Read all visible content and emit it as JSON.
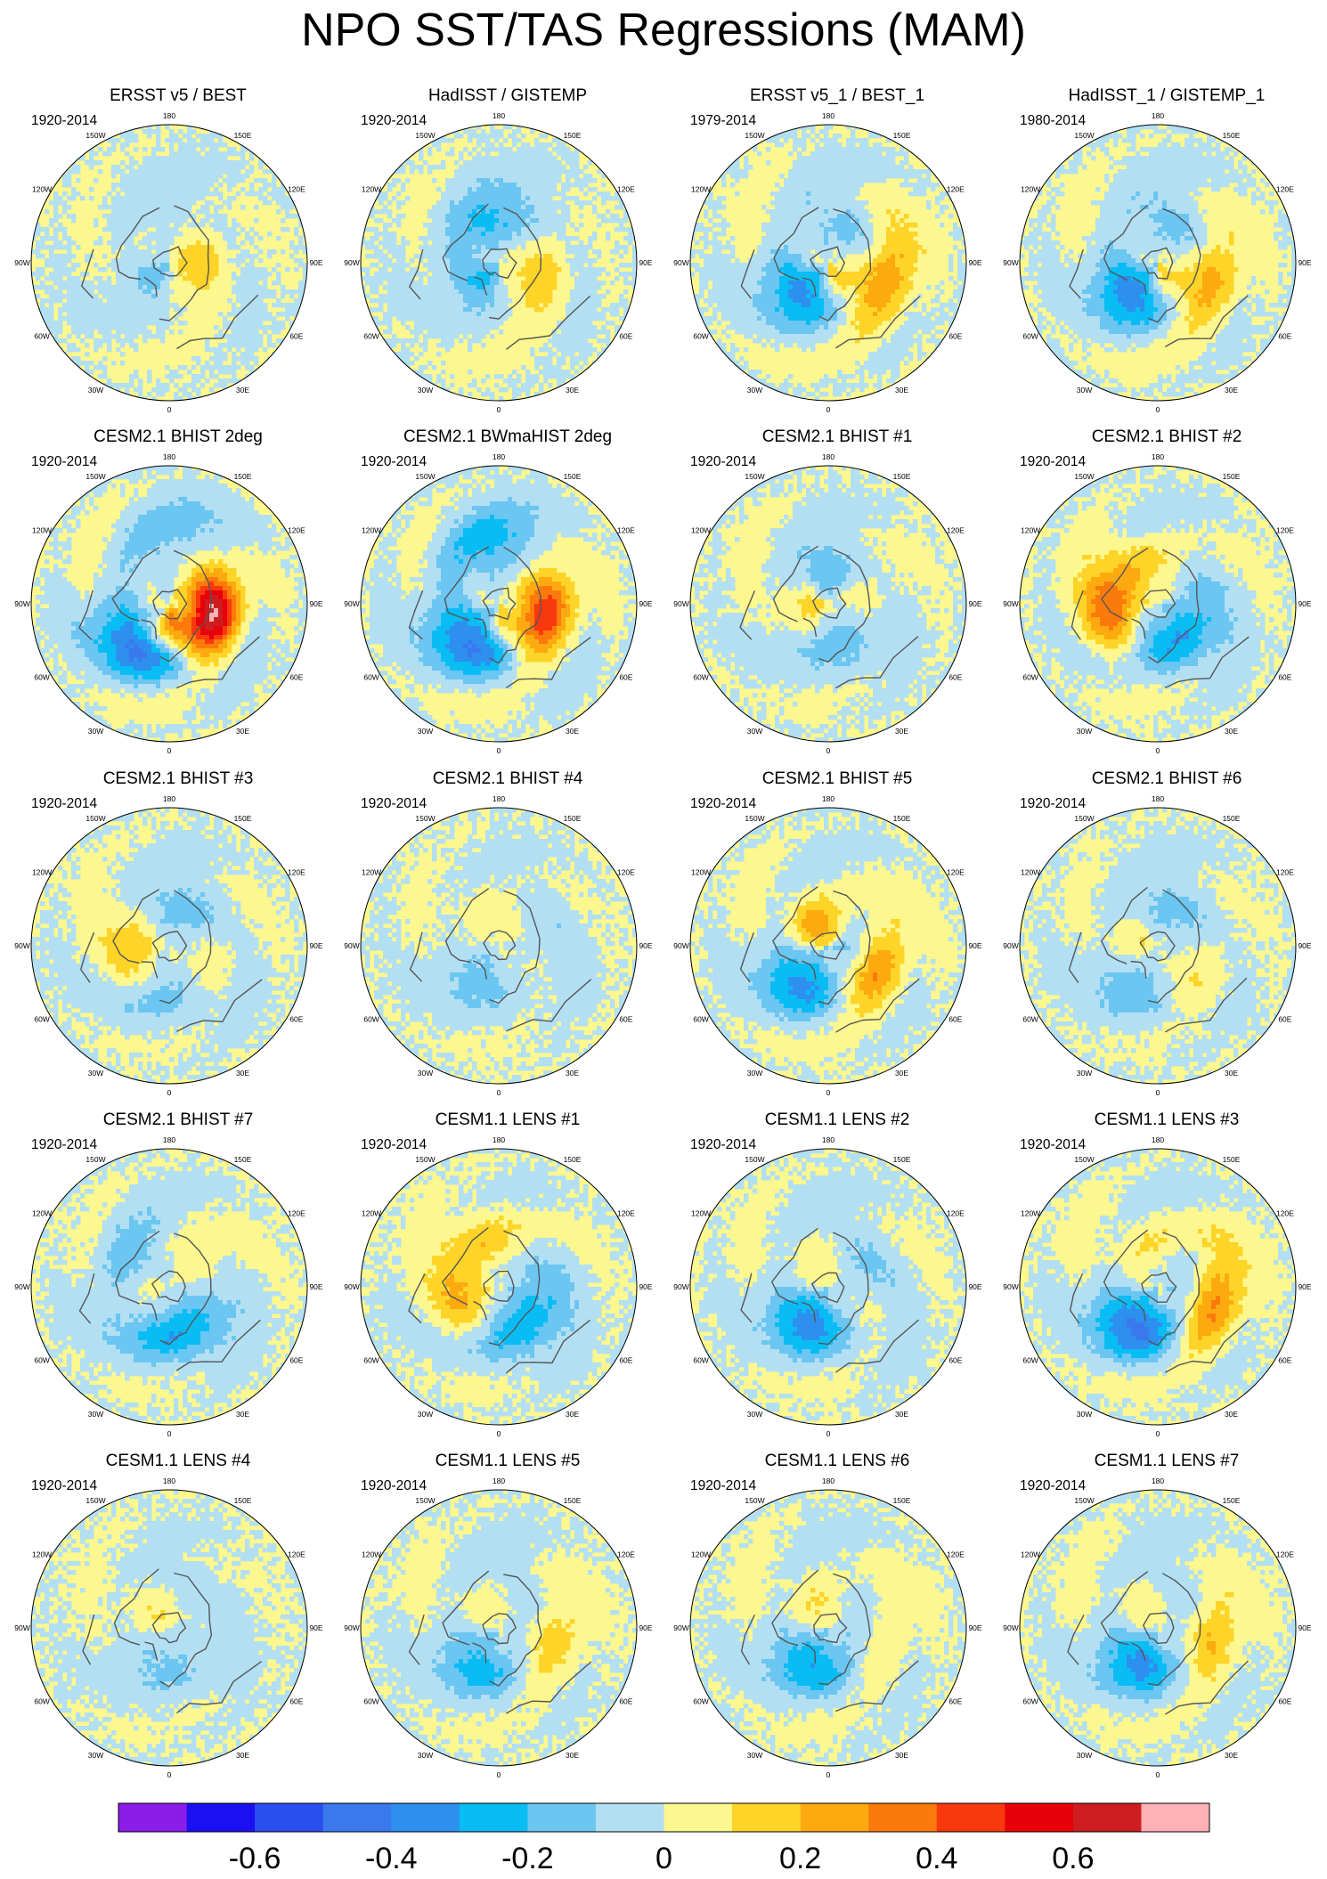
{
  "title": "NPO SST/TAS Regressions (MAM)",
  "panels": [
    {
      "title": "ERSST v5 / BEST",
      "period": "1920-2014",
      "pattern": {
        "amp": 0.25,
        "pos": [
          [
            92,
            0.22,
            0.3
          ],
          [
            35,
            0.12,
            0.18
          ]
        ],
        "neg": [
          [
            -35,
            0.1,
            0.35
          ],
          [
            165,
            0.42,
            0.1
          ]
        ],
        "land": 0.25
      }
    },
    {
      "title": "HadISST / GISTEMP",
      "period": "1920-2014",
      "pattern": {
        "amp": 0.32,
        "pos": [
          [
            82,
            0.36,
            0.35
          ],
          [
            35,
            0.15,
            0.15
          ]
        ],
        "neg": [
          [
            -35,
            0.17,
            0.35
          ],
          [
            200,
            0.32,
            0.3
          ],
          [
            120,
            0.42,
            0.18
          ]
        ],
        "land": 0.3
      }
    },
    {
      "title": "ERSST v5_1 / BEST_1",
      "period": "1979-2014",
      "pattern": {
        "amp": 0.45,
        "pos": [
          [
            82,
            0.44,
            0.45
          ],
          [
            40,
            0.12,
            0.2
          ]
        ],
        "neg": [
          [
            -38,
            0.3,
            0.38
          ],
          [
            125,
            0.35,
            0.26
          ]
        ],
        "land": 0.2
      }
    },
    {
      "title": "HadISST_1 / GISTEMP_1",
      "period": "1980-2014",
      "pattern": {
        "amp": 0.45,
        "pos": [
          [
            80,
            0.42,
            0.38
          ],
          [
            40,
            0.12,
            0.18
          ]
        ],
        "neg": [
          [
            -38,
            0.3,
            0.4
          ],
          [
            130,
            0.35,
            0.25
          ]
        ],
        "land": 0.2
      }
    },
    {
      "title": "CESM2.1 BHIST 2deg",
      "period": "1920-2014",
      "pattern": {
        "amp": 0.62,
        "pos": [
          [
            80,
            0.34,
            0.6
          ],
          [
            -5,
            0.18,
            0.3
          ]
        ],
        "neg": [
          [
            -30,
            0.36,
            0.4
          ],
          [
            150,
            0.5,
            0.14
          ]
        ],
        "land": 0.15
      }
    },
    {
      "title": "CESM2.1 BWmaHIST 2deg",
      "period": "1920-2014",
      "pattern": {
        "amp": 0.55,
        "pos": [
          [
            80,
            0.36,
            0.48
          ],
          [
            10,
            0.15,
            0.15
          ]
        ],
        "neg": [
          [
            -30,
            0.34,
            0.4
          ],
          [
            175,
            0.45,
            0.22
          ]
        ],
        "land": 0.15
      }
    },
    {
      "title": "CESM2.1 BHIST #1",
      "period": "1920-2014",
      "pattern": {
        "amp": 0.3,
        "pos": [
          [
            -70,
            0.12,
            0.28
          ],
          [
            100,
            0.25,
            0.2
          ]
        ],
        "neg": [
          [
            15,
            0.3,
            0.3
          ],
          [
            170,
            0.25,
            0.3
          ]
        ],
        "land": 0.2
      }
    },
    {
      "title": "CESM2.1 BHIST #2",
      "period": "1920-2014",
      "pattern": {
        "amp": 0.4,
        "pos": [
          [
            -80,
            0.35,
            0.5
          ],
          [
            180,
            0.28,
            0.25
          ]
        ],
        "neg": [
          [
            15,
            0.3,
            0.4
          ],
          [
            130,
            0.3,
            0.2
          ]
        ],
        "land": 0.2
      }
    },
    {
      "title": "CESM2.1 BHIST #3",
      "period": "1920-2014",
      "pattern": {
        "amp": 0.32,
        "pos": [
          [
            -70,
            0.3,
            0.4
          ],
          [
            60,
            0.32,
            0.2
          ]
        ],
        "neg": [
          [
            -10,
            0.35,
            0.35
          ],
          [
            150,
            0.3,
            0.25
          ]
        ],
        "land": 0.2
      }
    },
    {
      "title": "CESM2.1 BHIST #4",
      "period": "1920-2014",
      "pattern": {
        "amp": 0.25,
        "pos": [
          [
            60,
            0.3,
            0.2
          ],
          [
            180,
            0.25,
            0.2
          ]
        ],
        "neg": [
          [
            -20,
            0.3,
            0.3
          ],
          [
            110,
            0.35,
            0.25
          ]
        ],
        "land": 0.25
      }
    },
    {
      "title": "CESM2.1 BHIST #5",
      "period": "1920-2014",
      "pattern": {
        "amp": 0.45,
        "pos": [
          [
            60,
            0.38,
            0.45
          ],
          [
            200,
            0.16,
            0.35
          ]
        ],
        "neg": [
          [
            -25,
            0.34,
            0.4
          ],
          [
            100,
            0.22,
            0.2
          ]
        ],
        "land": 0.2
      }
    },
    {
      "title": "CESM2.1 BHIST #6",
      "period": "1920-2014",
      "pattern": {
        "amp": 0.3,
        "pos": [
          [
            40,
            0.35,
            0.3
          ],
          [
            -80,
            0.2,
            0.2
          ]
        ],
        "neg": [
          [
            -20,
            0.34,
            0.4
          ],
          [
            150,
            0.3,
            0.25
          ]
        ],
        "land": 0.25
      }
    },
    {
      "title": "CESM2.1 BHIST #7",
      "period": "1920-2014",
      "pattern": {
        "amp": 0.35,
        "pos": [
          [
            170,
            0.3,
            0.2
          ],
          [
            -60,
            0.2,
            0.15
          ]
        ],
        "neg": [
          [
            10,
            0.34,
            0.45
          ],
          [
            220,
            0.35,
            0.3
          ]
        ],
        "land": 0.2
      }
    },
    {
      "title": "CESM1.1 LENS #1",
      "period": "1920-2014",
      "pattern": {
        "amp": 0.35,
        "pos": [
          [
            -60,
            0.3,
            0.4
          ],
          [
            190,
            0.35,
            0.3
          ]
        ],
        "neg": [
          [
            15,
            0.34,
            0.42
          ],
          [
            120,
            0.3,
            0.2
          ]
        ],
        "land": 0.2
      }
    },
    {
      "title": "CESM1.1 LENS #2",
      "period": "1920-2014",
      "pattern": {
        "amp": 0.38,
        "pos": [
          [
            60,
            0.3,
            0.25
          ],
          [
            180,
            0.2,
            0.2
          ]
        ],
        "neg": [
          [
            -20,
            0.3,
            0.5
          ],
          [
            120,
            0.3,
            0.3
          ]
        ],
        "land": 0.2
      }
    },
    {
      "title": "CESM1.1 LENS #3",
      "period": "1920-2014",
      "pattern": {
        "amp": 0.45,
        "pos": [
          [
            70,
            0.42,
            0.5
          ],
          [
            180,
            0.3,
            0.2
          ]
        ],
        "neg": [
          [
            -20,
            0.34,
            0.5
          ],
          [
            120,
            0.28,
            0.25
          ]
        ],
        "land": 0.2
      }
    },
    {
      "title": "CESM1.1 LENS #4",
      "period": "1920-2014",
      "pattern": {
        "amp": 0.22,
        "pos": [
          [
            200,
            0.1,
            0.3
          ],
          [
            90,
            0.3,
            0.15
          ]
        ],
        "neg": [
          [
            0,
            0.3,
            0.3
          ],
          [
            130,
            0.3,
            0.25
          ]
        ],
        "land": 0.25
      }
    },
    {
      "title": "CESM1.1 LENS #5",
      "period": "1920-2014",
      "pattern": {
        "amp": 0.32,
        "pos": [
          [
            80,
            0.4,
            0.4
          ],
          [
            180,
            0.2,
            0.2
          ]
        ],
        "neg": [
          [
            -20,
            0.32,
            0.4
          ],
          [
            130,
            0.3,
            0.3
          ]
        ],
        "land": 0.2
      }
    },
    {
      "title": "CESM1.1 LENS #6",
      "period": "1920-2014",
      "pattern": {
        "amp": 0.35,
        "pos": [
          [
            80,
            0.4,
            0.3
          ],
          [
            190,
            0.2,
            0.2
          ]
        ],
        "neg": [
          [
            -20,
            0.3,
            0.42
          ],
          [
            110,
            0.3,
            0.25
          ]
        ],
        "land": 0.2
      }
    },
    {
      "title": "CESM1.1 LENS #7",
      "period": "1920-2014",
      "pattern": {
        "amp": 0.38,
        "pos": [
          [
            80,
            0.4,
            0.38
          ],
          [
            190,
            0.2,
            0.2
          ]
        ],
        "neg": [
          [
            -20,
            0.3,
            0.45
          ],
          [
            140,
            0.3,
            0.25
          ]
        ],
        "land": 0.2
      }
    }
  ],
  "lon_labels": [
    {
      "lon": 180,
      "text": "180"
    },
    {
      "lon": 150,
      "text": "150E"
    },
    {
      "lon": 120,
      "text": "120E"
    },
    {
      "lon": 90,
      "text": "90E"
    },
    {
      "lon": 60,
      "text": "60E"
    },
    {
      "lon": 30,
      "text": "30E"
    },
    {
      "lon": 0,
      "text": "0"
    },
    {
      "lon": -30,
      "text": "30W"
    },
    {
      "lon": -60,
      "text": "60W"
    },
    {
      "lon": -90,
      "text": "90W"
    },
    {
      "lon": -120,
      "text": "120W"
    },
    {
      "lon": -150,
      "text": "150W"
    }
  ],
  "colorbar": {
    "colors": [
      "#8c1de8",
      "#1a10f2",
      "#2a4ef0",
      "#3a78ee",
      "#2d8fee",
      "#09bdf4",
      "#6bc6f1",
      "#b3dff3",
      "#fcf78e",
      "#fdd427",
      "#fdaa11",
      "#fc7a0b",
      "#f9390d",
      "#e8000a",
      "#cd1d1e",
      "#feb2b5"
    ],
    "ticks": [
      {
        "value": -0.6,
        "label": "-0.6"
      },
      {
        "value": -0.4,
        "label": "-0.4"
      },
      {
        "value": -0.2,
        "label": "-0.2"
      },
      {
        "value": 0,
        "label": "0"
      },
      {
        "value": 0.2,
        "label": "0.2"
      },
      {
        "value": 0.4,
        "label": "0.4"
      },
      {
        "value": 0.6,
        "label": "0.6"
      }
    ],
    "vmin": -0.8,
    "vmax": 0.8,
    "step": 0.1
  }
}
